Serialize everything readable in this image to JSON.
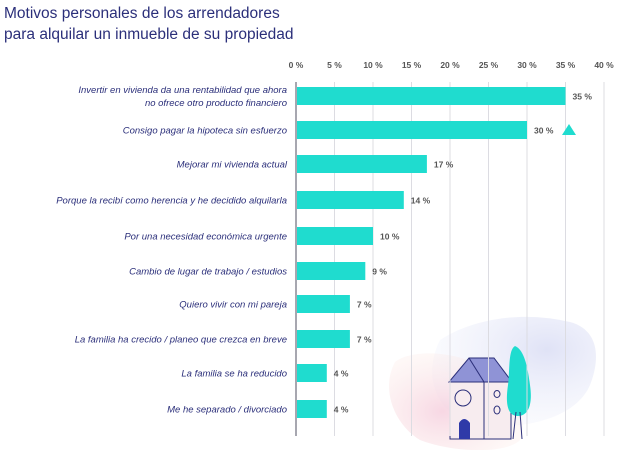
{
  "title_line1": "Motivos personales de los arrendadores",
  "title_line2": "para alquilar un inmueble de su propiedad",
  "colors": {
    "bar": "#1fdccf",
    "text": "#2b2f7a",
    "grid": "#dcdce2",
    "house_roof": "#8f93d6",
    "door": "#2f3aa8"
  },
  "chart_data": {
    "type": "bar",
    "orientation": "horizontal",
    "title": "Motivos personales de los arrendadores para alquilar un inmueble de su propiedad",
    "xlim": [
      0,
      40
    ],
    "xticks": [
      "0 %",
      "5 %",
      "10 %",
      "15 %",
      "20 %",
      "25 %",
      "30 %",
      "35 %",
      "40 %"
    ],
    "grid": true,
    "categories": [
      [
        "Invertir en vivienda da una rentabilidad que ahora",
        "no ofrece otro producto financiero"
      ],
      [
        "Consigo pagar la hipoteca sin esfuerzo"
      ],
      [
        "Mejorar mi vivienda actual"
      ],
      [
        "Porque la recibí como herencia y he decidido alquilarla"
      ],
      [
        "Por una necesidad económica urgente"
      ],
      [
        "Cambio de lugar de trabajo / estudios"
      ],
      [
        "Quiero vivir con mi pareja"
      ],
      [
        "La familia ha crecido / planeo que crezca en breve"
      ],
      [
        "La familia se ha reducido"
      ],
      [
        "Me he separado / divorciado"
      ]
    ],
    "values": [
      35,
      30,
      17,
      14,
      10,
      9,
      7,
      7,
      4,
      4
    ],
    "value_labels": [
      "35 %",
      "30 %",
      "17 %",
      "14 %",
      "10 %",
      "9 %",
      "7 %",
      "7 %",
      "4 %",
      "4 %"
    ],
    "annotations": [
      {
        "category_index": 1,
        "marker": "up-triangle"
      }
    ]
  }
}
